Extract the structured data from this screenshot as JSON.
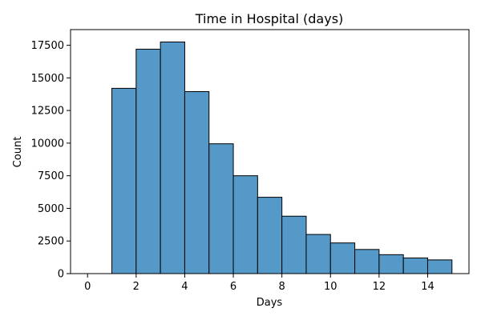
{
  "chart_data": {
    "type": "bar",
    "title": "Time in Hospital (days)",
    "xlabel": "Days",
    "ylabel": "Count",
    "xlim": [
      -0.7,
      15.7
    ],
    "ylim": [
      0,
      18700
    ],
    "bins": [
      {
        "x0": 0,
        "x1": 1,
        "value": 0
      },
      {
        "x0": 1,
        "x1": 2,
        "value": 14200
      },
      {
        "x0": 2,
        "x1": 3,
        "value": 17200
      },
      {
        "x0": 3,
        "x1": 4,
        "value": 17750
      },
      {
        "x0": 4,
        "x1": 5,
        "value": 13950
      },
      {
        "x0": 5,
        "x1": 6,
        "value": 9950
      },
      {
        "x0": 6,
        "x1": 7,
        "value": 7500
      },
      {
        "x0": 7,
        "x1": 8,
        "value": 5850
      },
      {
        "x0": 8,
        "x1": 9,
        "value": 4400
      },
      {
        "x0": 9,
        "x1": 10,
        "value": 3000
      },
      {
        "x0": 10,
        "x1": 11,
        "value": 2350
      },
      {
        "x0": 11,
        "x1": 12,
        "value": 1850
      },
      {
        "x0": 12,
        "x1": 13,
        "value": 1450
      },
      {
        "x0": 13,
        "x1": 14,
        "value": 1200
      },
      {
        "x0": 14,
        "x1": 15,
        "value": 1050
      }
    ],
    "xticks": [
      0,
      2,
      4,
      6,
      8,
      10,
      12,
      14
    ],
    "yticks": [
      0,
      2500,
      5000,
      7500,
      10000,
      12500,
      15000,
      17500
    ],
    "grid": false,
    "bar_color": "#5499c7",
    "edge_color": "#000000"
  }
}
